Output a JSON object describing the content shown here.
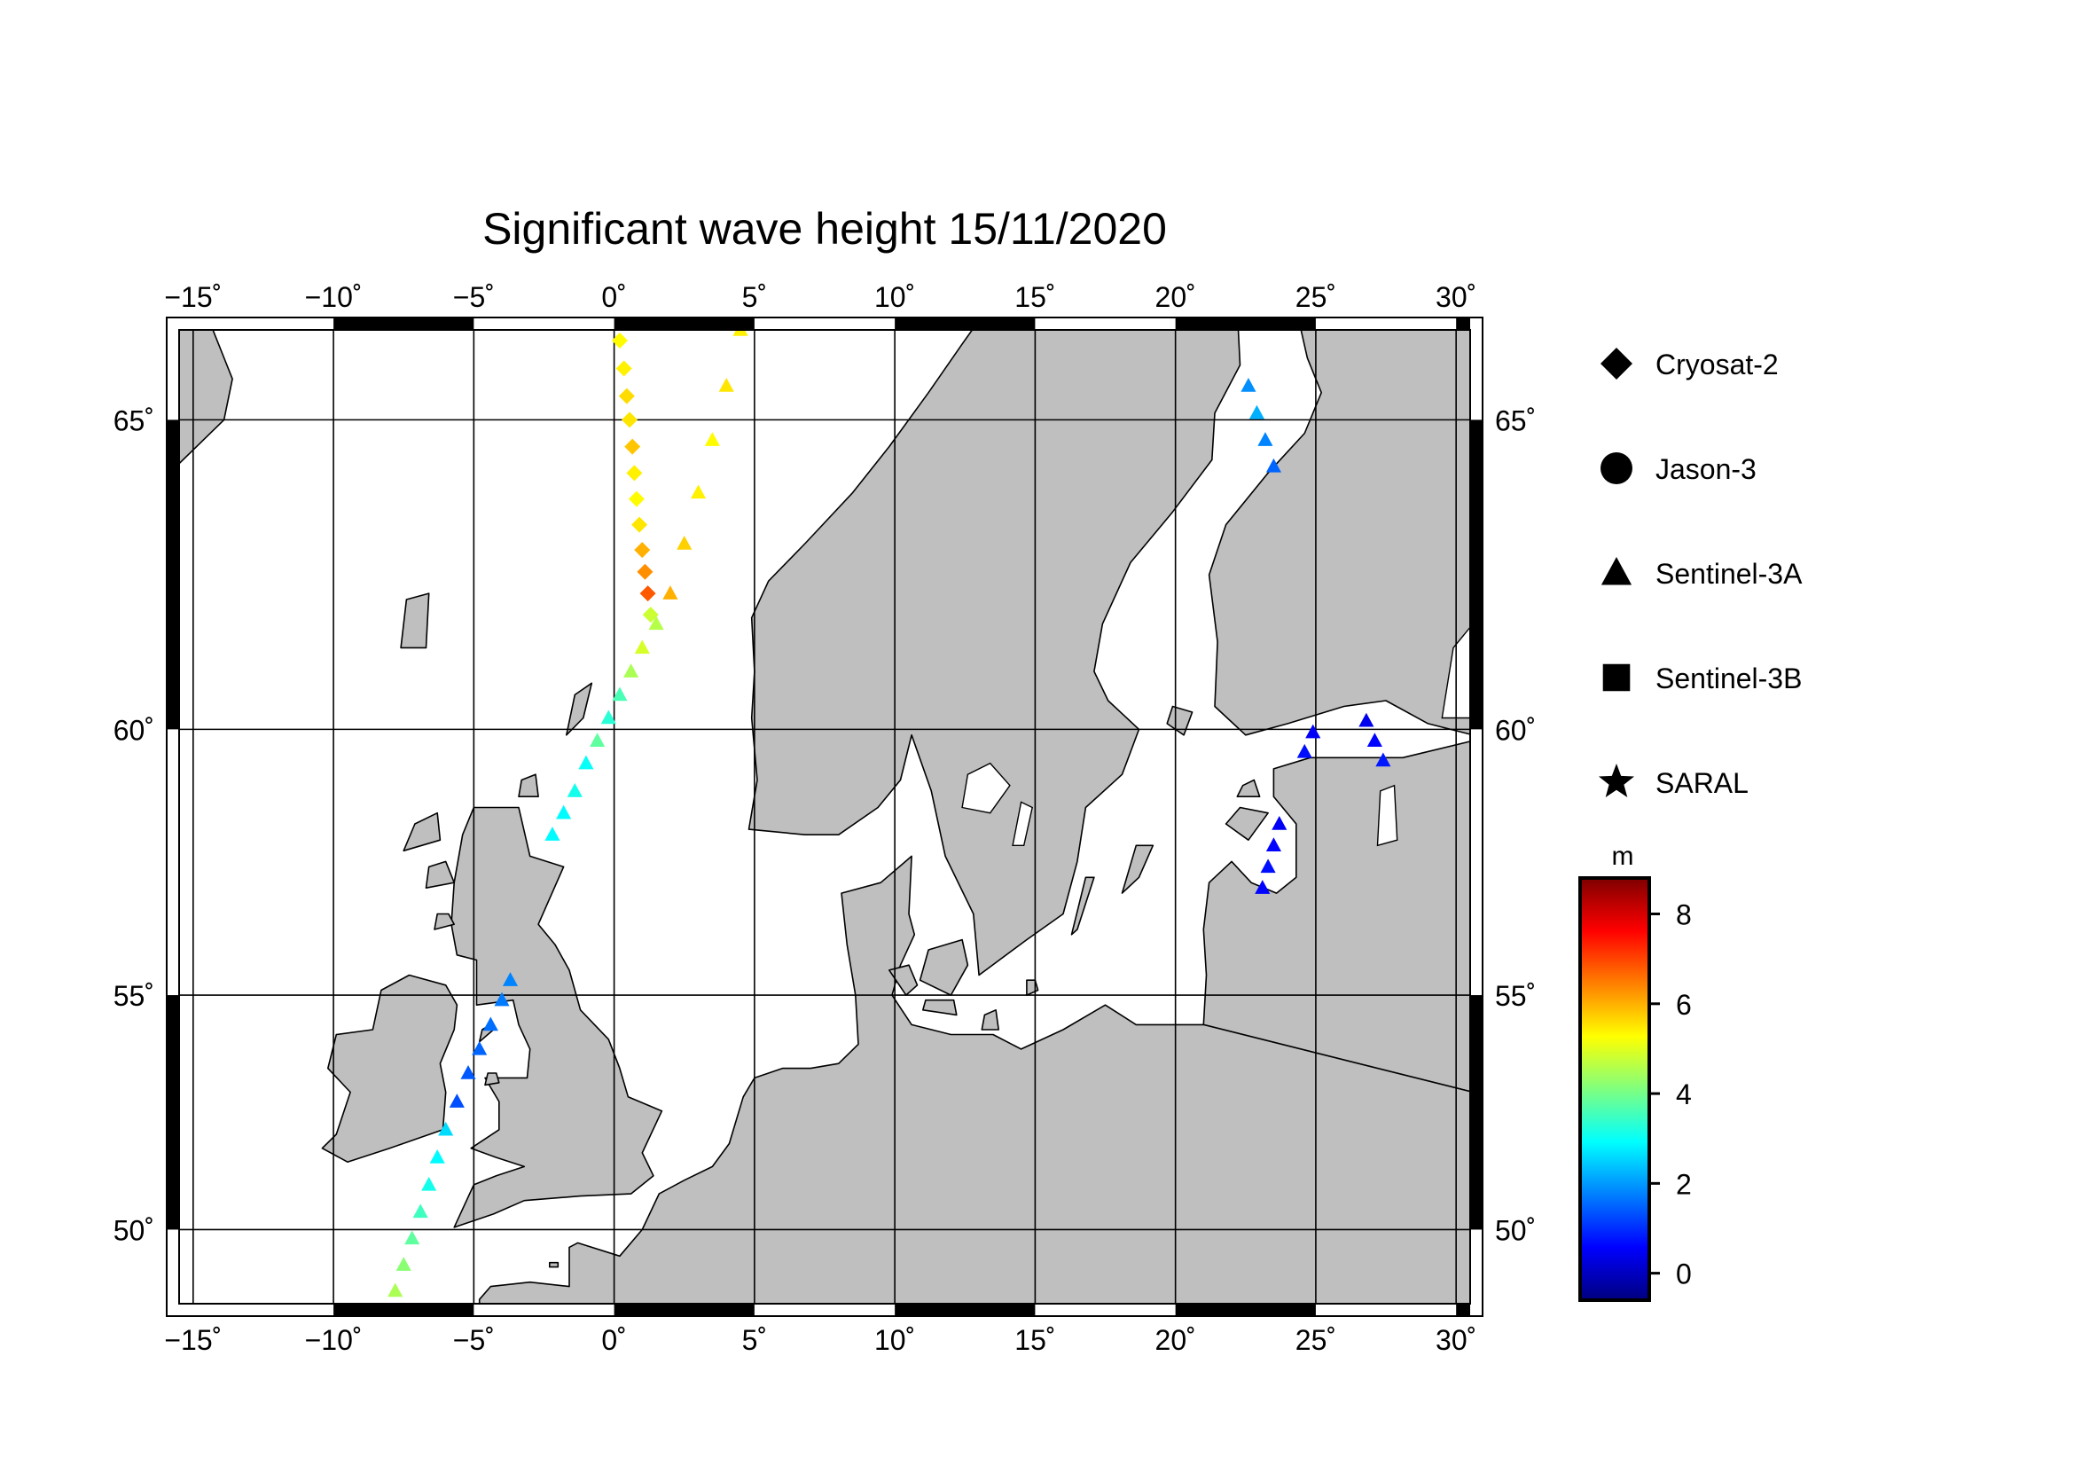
{
  "map": {
    "title": "Significant wave height 15/11/2020",
    "lon_range": [
      -15.5,
      30.5
    ],
    "lat_range": [
      48.3,
      66.3
    ],
    "lon_ticks": [
      -15,
      -10,
      -5,
      0,
      5,
      10,
      15,
      20,
      25,
      30
    ],
    "lat_ticks": [
      50,
      55,
      60,
      65
    ],
    "lon_tick_labels": [
      "−15˚",
      "−10˚",
      "−5˚",
      "0˚",
      "5˚",
      "10˚",
      "15˚",
      "20˚",
      "25˚",
      "30˚"
    ],
    "lat_tick_labels": [
      "50˚",
      "55˚",
      "60˚",
      "65˚"
    ],
    "land_color": "#bfbfbf",
    "sea_color": "#ffffff",
    "grid": true
  },
  "legend": {
    "items": [
      {
        "label": "Cryosat-2",
        "symbol": "diamond-icon"
      },
      {
        "label": "Jason-3",
        "symbol": "circle-icon"
      },
      {
        "label": "Sentinel-3A",
        "symbol": "triangle-icon"
      },
      {
        "label": "Sentinel-3B",
        "symbol": "square-icon"
      },
      {
        "label": "SARAL",
        "symbol": "star-icon"
      }
    ]
  },
  "colorbar": {
    "unit": "m",
    "range": [
      -0.6,
      8.8
    ],
    "ticks": [
      0,
      2,
      4,
      6,
      8
    ],
    "tick_labels": [
      "0",
      "2",
      "4",
      "6",
      "8"
    ],
    "colormap": [
      "#00007f",
      "#0000ff",
      "#007fff",
      "#00ffff",
      "#7fff7f",
      "#ffff00",
      "#ff7f00",
      "#ff0000",
      "#7f0000"
    ]
  },
  "chart_data": {
    "type": "scatter",
    "x_axis": "longitude",
    "y_axis": "latitude",
    "series": [
      {
        "name": "Cryosat-2",
        "marker": "diamond",
        "points": [
          {
            "lon": 0.2,
            "lat": 66.15,
            "swh": 5.3
          },
          {
            "lon": 0.35,
            "lat": 65.75,
            "swh": 5.4
          },
          {
            "lon": 0.45,
            "lat": 65.35,
            "swh": 5.6
          },
          {
            "lon": 0.55,
            "lat": 65.0,
            "swh": 5.5
          },
          {
            "lon": 0.65,
            "lat": 64.6,
            "swh": 5.8
          },
          {
            "lon": 0.72,
            "lat": 64.2,
            "swh": 5.4
          },
          {
            "lon": 0.8,
            "lat": 63.8,
            "swh": 5.3
          },
          {
            "lon": 0.9,
            "lat": 63.4,
            "swh": 5.5
          },
          {
            "lon": 1.0,
            "lat": 63.0,
            "swh": 6.0
          },
          {
            "lon": 1.1,
            "lat": 62.65,
            "swh": 6.3
          },
          {
            "lon": 1.2,
            "lat": 62.3,
            "swh": 6.8
          },
          {
            "lon": 1.3,
            "lat": 61.95,
            "swh": 4.8
          }
        ]
      },
      {
        "name": "Sentinel-3A",
        "marker": "triangle",
        "points": [
          {
            "lon": 4.5,
            "lat": 66.3,
            "swh": 5.4
          },
          {
            "lon": 4.0,
            "lat": 65.5,
            "swh": 5.5
          },
          {
            "lon": 3.5,
            "lat": 64.7,
            "swh": 5.3
          },
          {
            "lon": 3.0,
            "lat": 63.9,
            "swh": 5.4
          },
          {
            "lon": 2.5,
            "lat": 63.1,
            "swh": 5.7
          },
          {
            "lon": 2.0,
            "lat": 62.3,
            "swh": 6.0
          },
          {
            "lon": 1.5,
            "lat": 61.8,
            "swh": 4.6
          },
          {
            "lon": 1.0,
            "lat": 61.4,
            "swh": 4.9
          },
          {
            "lon": 0.6,
            "lat": 61.0,
            "swh": 4.5
          },
          {
            "lon": 0.2,
            "lat": 60.6,
            "swh": 3.6
          },
          {
            "lon": -0.2,
            "lat": 60.2,
            "swh": 3.3
          },
          {
            "lon": -0.6,
            "lat": 59.8,
            "swh": 3.8
          },
          {
            "lon": -1.0,
            "lat": 59.4,
            "swh": 3.0
          },
          {
            "lon": -1.4,
            "lat": 58.9,
            "swh": 3.1
          },
          {
            "lon": -1.8,
            "lat": 58.5,
            "swh": 2.9
          },
          {
            "lon": -2.2,
            "lat": 58.1,
            "swh": 2.9
          },
          {
            "lon": -3.7,
            "lat": 55.3,
            "swh": 1.8
          },
          {
            "lon": -4.0,
            "lat": 54.9,
            "swh": 1.7
          },
          {
            "lon": -4.4,
            "lat": 54.4,
            "swh": 1.6
          },
          {
            "lon": -4.8,
            "lat": 53.9,
            "swh": 1.5
          },
          {
            "lon": -5.2,
            "lat": 53.4,
            "swh": 1.4
          },
          {
            "lon": -5.6,
            "lat": 52.8,
            "swh": 1.3
          },
          {
            "lon": -6.0,
            "lat": 52.2,
            "swh": 2.6
          },
          {
            "lon": -6.3,
            "lat": 51.6,
            "swh": 2.9
          },
          {
            "lon": -6.6,
            "lat": 51.0,
            "swh": 3.1
          },
          {
            "lon": -6.9,
            "lat": 50.4,
            "swh": 3.5
          },
          {
            "lon": -7.2,
            "lat": 49.8,
            "swh": 3.8
          },
          {
            "lon": -7.5,
            "lat": 49.2,
            "swh": 4.2
          },
          {
            "lon": -7.8,
            "lat": 48.6,
            "swh": 4.5
          },
          {
            "lon": 22.6,
            "lat": 65.5,
            "swh": 1.9
          },
          {
            "lon": 22.9,
            "lat": 65.1,
            "swh": 2.2
          },
          {
            "lon": 23.2,
            "lat": 64.7,
            "swh": 1.8
          },
          {
            "lon": 23.5,
            "lat": 64.3,
            "swh": 1.5
          },
          {
            "lon": 24.9,
            "lat": 59.95,
            "swh": 0.5
          },
          {
            "lon": 24.6,
            "lat": 59.6,
            "swh": 0.7
          },
          {
            "lon": 26.8,
            "lat": 60.15,
            "swh": 0.4
          },
          {
            "lon": 27.1,
            "lat": 59.8,
            "swh": 0.6
          },
          {
            "lon": 27.4,
            "lat": 59.45,
            "swh": 0.8
          },
          {
            "lon": 23.7,
            "lat": 58.3,
            "swh": 0.5
          },
          {
            "lon": 23.5,
            "lat": 57.9,
            "swh": 0.6
          },
          {
            "lon": 23.3,
            "lat": 57.5,
            "swh": 0.7
          },
          {
            "lon": 23.1,
            "lat": 57.1,
            "swh": 0.6
          }
        ]
      }
    ]
  }
}
